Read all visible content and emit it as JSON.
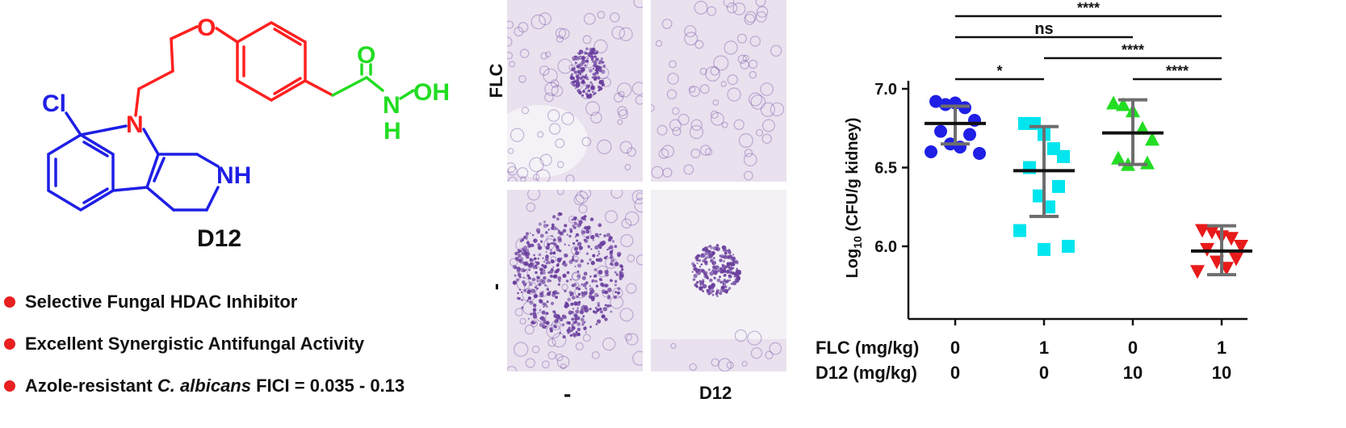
{
  "compound": {
    "name": "D12",
    "atoms": {
      "oxygen_ether": "O",
      "oxygen_carbonyl": "O",
      "chlorine": "Cl",
      "nitrogen_indole": "N",
      "amine": "NH",
      "hydroxamic_n": "N",
      "hydroxamic_h": "H",
      "hydroxyl": "OH"
    },
    "colors": {
      "linker": "#ff2020",
      "hydroxamate": "#22dd22",
      "core": "#1f1fe6"
    }
  },
  "features": {
    "bullet_color": "#e82020",
    "items": [
      {
        "text": "Selective Fungal HDAC Inhibitor"
      },
      {
        "text": "Excellent Synergistic Antifungal Activity"
      },
      {
        "prefix": "Azole-resistant ",
        "italic": "C. albicans",
        "suffix": " FICI = 0.035 - 0.13"
      }
    ]
  },
  "histology": {
    "row_labels": [
      "FLC",
      "-"
    ],
    "col_labels": [
      "-",
      "D12"
    ],
    "stain_color": "#6a3f9e"
  },
  "chart_data": {
    "type": "scatter",
    "title": "",
    "ylabel_prefix": "Log",
    "ylabel_sub": "10",
    "ylabel_suffix": " (CFU/g kidney)",
    "ylim": [
      5.75,
      7.05
    ],
    "yticks": [
      "6.0",
      "6.5",
      "7.0"
    ],
    "ytick_values": [
      6.0,
      6.5,
      7.0
    ],
    "treatment_rows": [
      {
        "label": "FLC (mg/kg)",
        "values": [
          "0",
          "1",
          "0",
          "1"
        ]
      },
      {
        "label": "D12 (mg/kg)",
        "values": [
          "0",
          "0",
          "10",
          "10"
        ]
      }
    ],
    "groups": [
      {
        "color": "#1f1fe6",
        "marker": "circle",
        "values": [
          6.92,
          6.9,
          6.91,
          6.88,
          6.8,
          6.73,
          6.71,
          6.65,
          6.63,
          6.6,
          6.59
        ],
        "mean": 6.78,
        "sd_low": 6.65,
        "sd_high": 6.89
      },
      {
        "color": "#00e5ee",
        "marker": "square",
        "values": [
          6.78,
          6.78,
          6.71,
          6.62,
          6.57,
          6.5,
          6.38,
          6.32,
          6.25,
          6.1,
          6.0,
          5.98
        ],
        "mean": 6.48,
        "sd_low": 6.19,
        "sd_high": 6.76
      },
      {
        "color": "#22dd22",
        "marker": "triangle-up",
        "values": [
          6.91,
          6.9,
          6.86,
          6.75,
          6.68,
          6.56,
          6.53,
          6.52
        ],
        "mean": 6.72,
        "sd_low": 6.52,
        "sd_high": 6.93
      },
      {
        "color": "#e81a1a",
        "marker": "triangle-down",
        "values": [
          6.1,
          6.09,
          6.06,
          6.05,
          6.0,
          5.98,
          5.92,
          5.9,
          5.86,
          5.84
        ],
        "mean": 5.97,
        "sd_low": 5.82,
        "sd_high": 6.13
      }
    ],
    "significance": [
      {
        "from": 0,
        "to": 3,
        "label": "****"
      },
      {
        "from": 0,
        "to": 2,
        "label": "ns"
      },
      {
        "from": 1,
        "to": 3,
        "label": "****"
      },
      {
        "from": 0,
        "to": 1,
        "label": "*"
      },
      {
        "from": 2,
        "to": 3,
        "label": "****"
      }
    ]
  }
}
